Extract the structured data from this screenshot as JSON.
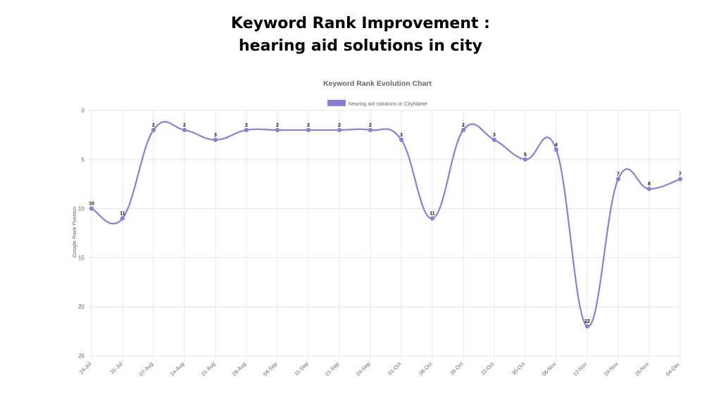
{
  "page": {
    "title_line1": "Keyword Rank Improvement :",
    "title_line2": "hearing aid solutions in city"
  },
  "chart_data": {
    "type": "line",
    "title": "Keyword Rank Evolution Chart",
    "ylabel": "Google Rank Position",
    "xlabel": "",
    "categories": [
      "24-Jul",
      "31-Jul",
      "07-Aug",
      "14-Aug",
      "21-Aug",
      "28-Aug",
      "04-Sep",
      "11-Sep",
      "21-Sep",
      "24-Sep",
      "01-Oct",
      "08-Oct",
      "16-Oct",
      "22-Oct",
      "30-Oct",
      "06-Nov",
      "12-Nov",
      "19-Nov",
      "26-Nov",
      "04-Dec"
    ],
    "series": [
      {
        "name": "hearing aid solutions in CityName",
        "values": [
          10,
          11,
          2,
          2,
          3,
          2,
          2,
          2,
          2,
          2,
          3,
          11,
          2,
          3,
          5,
          4,
          22,
          7,
          8,
          7
        ],
        "color": "#8b7fd4"
      }
    ],
    "ylim": [
      0,
      25
    ],
    "yticks": [
      0,
      5,
      10,
      15,
      20,
      25
    ],
    "y_reversed": true,
    "grid": true,
    "legend_position": "top-center",
    "data_labels": true
  },
  "colors": {
    "line": "#8b7fd4",
    "grid": "#e6e6e6",
    "axis_text": "#666666",
    "label_text": "#111111"
  }
}
